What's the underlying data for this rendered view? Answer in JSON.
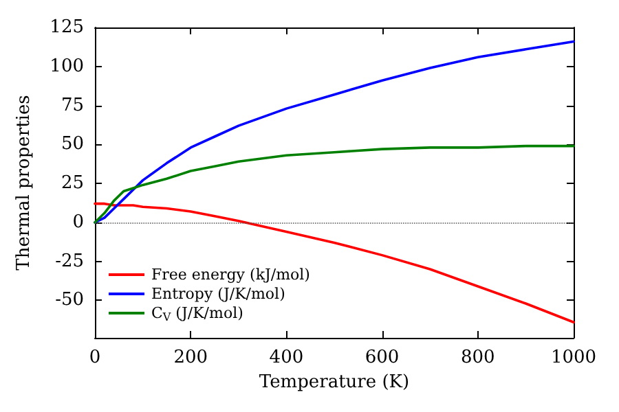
{
  "chart_data": {
    "type": "line",
    "xlabel": "Temperature (K)",
    "ylabel": "Thermal properties",
    "x": [
      0,
      20,
      40,
      60,
      80,
      100,
      150,
      200,
      250,
      300,
      400,
      500,
      600,
      700,
      800,
      900,
      1000
    ],
    "series": [
      {
        "name": "Free energy (kJ/mol)",
        "color": "#ff0000",
        "values": [
          12,
          12,
          11,
          11,
          11,
          10,
          9,
          7,
          4,
          1,
          -6,
          -13,
          -21,
          -30,
          -41,
          -52,
          -64
        ]
      },
      {
        "name": "Entropy (J/K/mol)",
        "color": "#0000ff",
        "values": [
          0,
          3,
          9,
          15,
          21,
          27,
          38,
          48,
          55,
          62,
          73,
          82,
          91,
          99,
          106,
          111,
          116
        ]
      },
      {
        "name": "C$_{V}$ (J/K/mol)",
        "color": "#008000",
        "values": [
          0,
          6,
          14,
          20,
          22,
          24,
          28,
          33,
          36,
          39,
          43,
          45,
          47,
          48,
          48,
          49,
          49
        ]
      }
    ],
    "xlim": [
      0,
      1000
    ],
    "xticks": [
      0,
      200,
      400,
      600,
      800,
      1000
    ],
    "ylim": [
      -74,
      125
    ],
    "yticks": [
      -50,
      -25,
      0,
      25,
      50,
      75,
      100,
      125
    ],
    "ref_lines": [
      {
        "axis": "y",
        "value": 0,
        "color": "#555555",
        "line_style": "dotted"
      }
    ],
    "legend": "bottom left",
    "grid": false,
    "marker": "none",
    "line_style": "solid"
  }
}
